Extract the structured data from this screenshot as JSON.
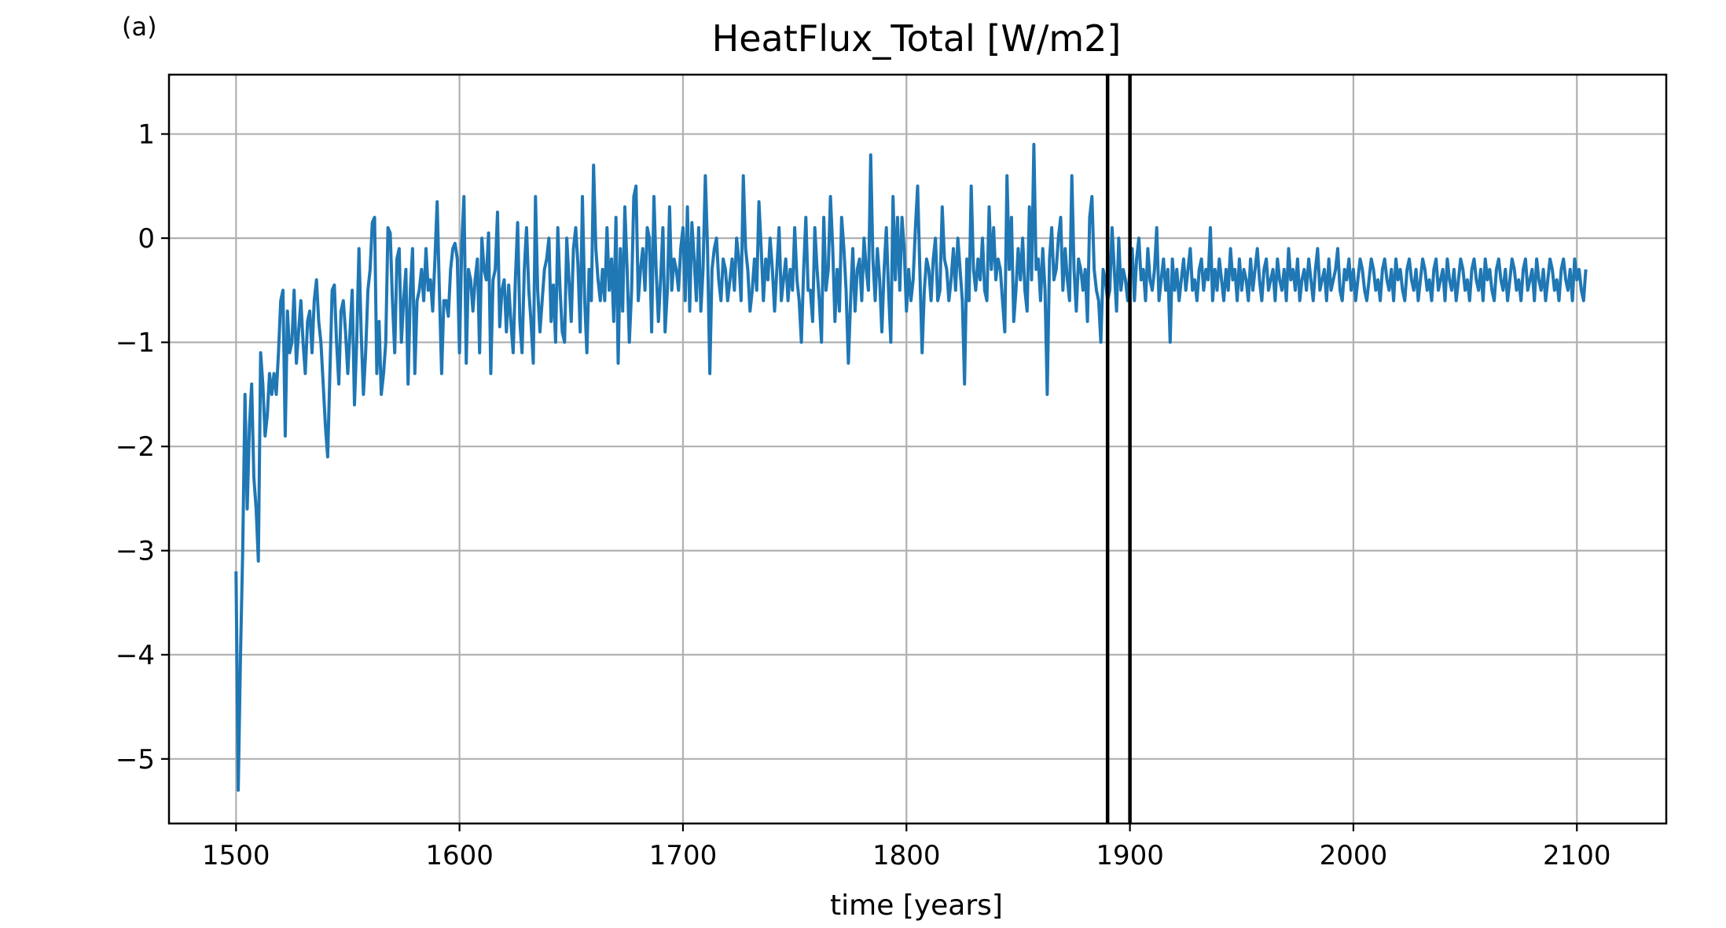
{
  "panel_label": "(a)",
  "chart_data": {
    "type": "line",
    "title": "HeatFlux_Total [W/m2]",
    "xlabel": "time [years]",
    "ylabel": "",
    "xlim": [
      1470,
      2140
    ],
    "ylim": [
      -5.62,
      1.57
    ],
    "x_ticks": [
      1500,
      1600,
      1700,
      1800,
      1900,
      2000,
      2100
    ],
    "y_ticks": [
      1,
      0,
      -1,
      -2,
      -3,
      -4,
      -5
    ],
    "x_tick_labels": [
      "1500",
      "1600",
      "1700",
      "1800",
      "1900",
      "2000",
      "2100"
    ],
    "y_tick_labels": [
      "1",
      "0",
      "−1",
      "−2",
      "−3",
      "−4",
      "−5"
    ],
    "grid": true,
    "vertical_lines": [
      1890,
      1900
    ],
    "series": [
      {
        "color": "#1f77b4",
        "x_start": 1500,
        "x_step": 1,
        "values": [
          -3.2,
          -5.3,
          -4.0,
          -3.0,
          -1.5,
          -2.6,
          -1.8,
          -1.4,
          -2.3,
          -2.6,
          -3.1,
          -1.1,
          -1.4,
          -1.9,
          -1.7,
          -1.3,
          -1.5,
          -1.3,
          -1.5,
          -1.1,
          -0.6,
          -0.5,
          -1.9,
          -0.7,
          -1.1,
          -1.0,
          -0.5,
          -1.2,
          -0.9,
          -0.6,
          -1.0,
          -1.3,
          -0.8,
          -0.7,
          -1.1,
          -0.6,
          -0.4,
          -0.8,
          -1.0,
          -1.4,
          -1.8,
          -2.1,
          -1.3,
          -0.5,
          -0.45,
          -1.0,
          -1.4,
          -0.7,
          -0.6,
          -0.9,
          -1.3,
          -0.9,
          -0.5,
          -1.6,
          -1.0,
          -0.1,
          -0.9,
          -1.5,
          -1.1,
          -0.5,
          -0.3,
          0.15,
          0.2,
          -1.3,
          -0.8,
          -1.5,
          -1.3,
          -1.0,
          0.1,
          0.05,
          -0.6,
          -1.1,
          -0.2,
          -0.1,
          -1.0,
          -0.6,
          -0.3,
          -1.4,
          -0.5,
          -0.1,
          -1.3,
          -0.6,
          -0.5,
          -0.3,
          -0.6,
          -0.1,
          -0.5,
          -0.4,
          -0.7,
          -0.2,
          0.35,
          -0.5,
          -1.3,
          -0.6,
          -0.6,
          -0.75,
          -0.3,
          -0.1,
          -0.05,
          -0.2,
          -1.1,
          -0.05,
          0.4,
          -1.2,
          -0.3,
          -0.4,
          -0.7,
          -0.4,
          -0.2,
          -1.1,
          0.0,
          -0.3,
          -0.4,
          0.05,
          -1.3,
          -0.4,
          -0.3,
          0.25,
          -0.85,
          -0.5,
          -0.4,
          -0.9,
          -0.45,
          -0.8,
          -1.1,
          -0.4,
          0.15,
          -0.8,
          -1.1,
          -0.3,
          0.1,
          -0.5,
          -0.8,
          -1.2,
          0.4,
          -0.5,
          -0.9,
          -0.6,
          -0.3,
          -0.2,
          0.0,
          -0.8,
          -0.45,
          -1.0,
          0.1,
          -0.5,
          -0.9,
          -1.0,
          0.0,
          -0.4,
          -0.8,
          -0.1,
          0.1,
          -0.25,
          -0.9,
          0.4,
          -0.6,
          -1.1,
          -0.3,
          -0.6,
          0.7,
          -0.1,
          -0.4,
          -0.6,
          -0.3,
          -0.6,
          0.1,
          -0.5,
          -0.2,
          -0.8,
          0.2,
          -1.2,
          -0.1,
          -0.7,
          0.3,
          -0.3,
          -1.0,
          -0.5,
          0.4,
          0.5,
          -0.6,
          -0.3,
          -0.1,
          -0.5,
          0.1,
          0.0,
          -0.9,
          0.4,
          -0.3,
          -0.8,
          -0.4,
          0.1,
          -0.9,
          -0.5,
          0.3,
          -0.5,
          -0.2,
          -0.3,
          -0.5,
          -0.1,
          0.1,
          -0.6,
          0.3,
          -0.7,
          0.15,
          -0.2,
          -0.6,
          0.1,
          -0.7,
          -0.3,
          0.6,
          -0.1,
          -1.3,
          -0.3,
          -0.1,
          0.0,
          -0.4,
          -0.6,
          -0.2,
          -0.3,
          -0.6,
          -0.4,
          -0.2,
          -0.5,
          0.0,
          -0.2,
          -0.6,
          0.6,
          -0.1,
          -0.3,
          -0.7,
          -0.5,
          -0.2,
          -0.5,
          0.35,
          -0.1,
          -0.6,
          -0.2,
          -0.4,
          0.0,
          -0.3,
          -0.7,
          -0.3,
          0.1,
          -0.6,
          -0.4,
          -0.2,
          -0.6,
          -0.3,
          -0.5,
          0.1,
          -0.4,
          -0.6,
          -1.0,
          -0.3,
          0.2,
          -0.5,
          -0.5,
          -0.8,
          0.1,
          -0.3,
          -0.6,
          -1.0,
          0.2,
          -0.5,
          -0.3,
          0.4,
          -0.1,
          -0.8,
          -0.3,
          -0.7,
          0.2,
          -0.1,
          -0.5,
          -1.2,
          -0.6,
          -0.1,
          -0.7,
          -0.3,
          -0.2,
          -0.6,
          0.0,
          -0.3,
          -0.5,
          0.8,
          -0.2,
          -0.6,
          -0.1,
          -0.4,
          -0.9,
          -0.3,
          0.1,
          -0.5,
          -1.0,
          0.4,
          -0.4,
          0.2,
          -0.5,
          0.2,
          -0.1,
          -0.7,
          -0.3,
          -0.6,
          -0.4,
          0.1,
          0.5,
          -0.3,
          -1.1,
          -0.5,
          -0.2,
          -0.3,
          -0.6,
          -0.2,
          0.0,
          -0.6,
          -0.5,
          0.3,
          -0.2,
          -0.3,
          -0.6,
          -0.4,
          -0.1,
          -0.5,
          0.0,
          -0.3,
          -0.6,
          -1.4,
          -0.2,
          -0.6,
          0.5,
          -0.3,
          -0.5,
          -0.2,
          -0.4,
          0.0,
          -0.5,
          -0.6,
          0.3,
          -0.3,
          0.1,
          -0.4,
          -0.2,
          -0.3,
          -0.6,
          -0.9,
          0.6,
          -0.3,
          0.2,
          -0.8,
          -0.5,
          -0.1,
          -0.4,
          0.0,
          -0.5,
          -0.7,
          0.3,
          -0.4,
          0.9,
          -0.3,
          -0.2,
          -0.6,
          -0.1,
          -0.5,
          -1.5,
          -0.2,
          0.1,
          -0.4,
          -0.3,
          0.0,
          0.2,
          -0.5,
          -0.1,
          -0.4,
          -0.6,
          0.6,
          -0.3,
          -0.7,
          -0.2,
          -0.3,
          -0.5,
          -0.3,
          -0.8,
          0.2,
          0.4,
          -0.3,
          -0.5,
          -0.6,
          -1.0,
          -0.3,
          -0.4,
          -0.6,
          -0.5,
          0.1,
          -0.3,
          -0.7,
          0.0,
          -0.5,
          -0.3,
          -0.4,
          -0.6,
          -0.3,
          -0.1,
          -0.6,
          -0.2,
          0.0,
          -0.4,
          -0.3,
          -0.6,
          -0.1,
          -0.4,
          -0.5,
          -0.3,
          0.1,
          -0.6,
          -0.4,
          -0.2,
          -0.5,
          -0.3,
          -1.0,
          -0.2,
          -0.5,
          -0.3,
          -0.6,
          -0.4,
          -0.2,
          -0.5,
          -0.3,
          -0.1,
          -0.5,
          -0.4,
          -0.6,
          -0.3,
          -0.2,
          -0.5,
          -0.3,
          -0.4,
          0.1,
          -0.6,
          -0.3,
          -0.5,
          -0.2,
          -0.4,
          -0.6,
          -0.3,
          -0.5,
          -0.1,
          -0.4,
          -0.3,
          -0.6,
          -0.2,
          -0.5,
          -0.3,
          -0.4,
          -0.6,
          -0.2,
          -0.5,
          -0.3,
          -0.1,
          -0.4,
          -0.6,
          -0.3,
          -0.2,
          -0.5,
          -0.4,
          -0.3,
          -0.6,
          -0.2,
          -0.4,
          -0.5,
          -0.3,
          -0.6,
          -0.1,
          -0.4,
          -0.3,
          -0.5,
          -0.2,
          -0.6,
          -0.4,
          -0.3,
          -0.5,
          -0.2,
          -0.4,
          -0.6,
          -0.3,
          -0.1,
          -0.5,
          -0.4,
          -0.3,
          -0.6,
          -0.2,
          -0.5,
          -0.4,
          -0.3,
          -0.1,
          -0.5,
          -0.6,
          -0.3,
          -0.4,
          -0.2,
          -0.5,
          -0.3,
          -0.6,
          -0.4,
          -0.2,
          -0.3,
          -0.5,
          -0.6,
          -0.4,
          -0.2,
          -0.3,
          -0.5,
          -0.4,
          -0.6,
          -0.3,
          -0.2,
          -0.4,
          -0.5,
          -0.3,
          -0.6,
          -0.2,
          -0.4,
          -0.3,
          -0.5,
          -0.6,
          -0.3,
          -0.2,
          -0.4,
          -0.5,
          -0.3,
          -0.6,
          -0.4,
          -0.2,
          -0.3,
          -0.5,
          -0.4,
          -0.6,
          -0.3,
          -0.2,
          -0.5,
          -0.4,
          -0.3,
          -0.6,
          -0.2,
          -0.4,
          -0.5,
          -0.3,
          -0.6,
          -0.4,
          -0.2,
          -0.3,
          -0.5,
          -0.4,
          -0.6,
          -0.3,
          -0.2,
          -0.4,
          -0.5,
          -0.3,
          -0.6,
          -0.2,
          -0.4,
          -0.3,
          -0.5,
          -0.6,
          -0.3,
          -0.2,
          -0.4,
          -0.5,
          -0.3,
          -0.6,
          -0.4,
          -0.2,
          -0.3,
          -0.5,
          -0.4,
          -0.6,
          -0.3,
          -0.2,
          -0.5,
          -0.4,
          -0.3,
          -0.6,
          -0.2,
          -0.4,
          -0.5,
          -0.3,
          -0.6,
          -0.4,
          -0.2,
          -0.3,
          -0.5,
          -0.4,
          -0.6,
          -0.3,
          -0.2,
          -0.4,
          -0.5,
          -0.3,
          -0.6,
          -0.2,
          -0.4,
          -0.3,
          -0.5,
          -0.6,
          -0.3
        ]
      }
    ]
  }
}
